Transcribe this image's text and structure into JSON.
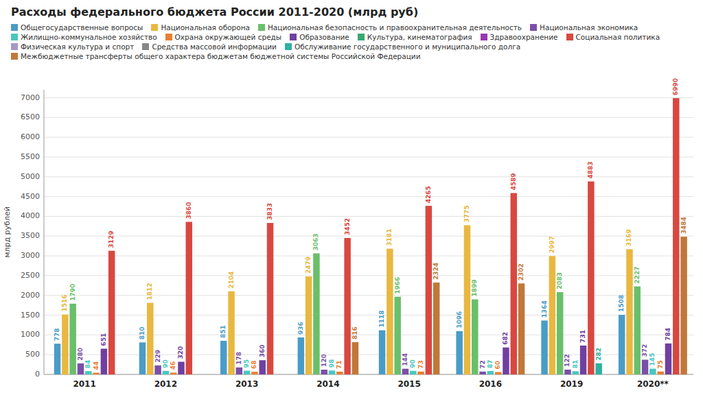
{
  "chart_data": {
    "type": "bar",
    "title": "Расходы федерального бюджета России 2011-2020 (млрд руб)",
    "ylabel": "млрд рублей",
    "categories": [
      "2011",
      "2012",
      "2013",
      "2014",
      "2015",
      "2016",
      "2019",
      "2020**"
    ],
    "series": [
      {
        "name": "Общегосударственные вопросы",
        "color": "#4A9CC8",
        "values": [
          778,
          810,
          851,
          936,
          1118,
          1096,
          1364,
          1508
        ]
      },
      {
        "name": "Национальная оборона",
        "color": "#E8B840",
        "values": [
          1516,
          1812,
          2104,
          2479,
          3181,
          3775,
          2997,
          3169
        ]
      },
      {
        "name": "Национальная безопасность и правоохранительная деятельность",
        "color": "#6ABF6A",
        "values": [
          1790,
          null,
          null,
          3063,
          1966,
          1899,
          2083,
          2227
        ]
      },
      {
        "name": "Национальная экономика",
        "color": "#7B4FA8",
        "values": [
          280,
          229,
          178,
          120,
          144,
          72,
          122,
          372
        ]
      },
      {
        "name": "Жилищно-коммунальное хозяйство",
        "color": "#48C8C0",
        "values": [
          84,
          90,
          95,
          98,
          90,
          87,
          81,
          145
        ]
      },
      {
        "name": "Охрана окружающей среды",
        "color": "#E88030",
        "values": [
          44,
          46,
          68,
          71,
          73,
          60,
          null,
          75
        ]
      },
      {
        "name": "Образование",
        "color": "#7040A0",
        "values": [
          651,
          320,
          360,
          null,
          null,
          682,
          731,
          784
        ]
      },
      {
        "name": "Культура, кинематография",
        "color": "#38A870",
        "values": [
          null,
          null,
          null,
          null,
          null,
          null,
          null,
          null
        ]
      },
      {
        "name": "Здравоохранение",
        "color": "#9838B0",
        "values": [
          null,
          null,
          null,
          null,
          null,
          null,
          null,
          null
        ]
      },
      {
        "name": "Социальная политика",
        "color": "#D84840",
        "values": [
          3129,
          3860,
          3833,
          3452,
          4265,
          4589,
          4883,
          6990
        ]
      },
      {
        "name": "Физическая культура и спорт",
        "color": "#A898C8",
        "values": [
          null,
          null,
          null,
          null,
          null,
          null,
          null,
          null
        ]
      },
      {
        "name": "Средства массовой информации",
        "color": "#888888",
        "values": [
          null,
          null,
          null,
          null,
          null,
          null,
          null,
          null
        ]
      },
      {
        "name": "Обслуживание государственного и муниципального долга",
        "color": "#30B0A0",
        "values": [
          null,
          null,
          null,
          null,
          null,
          null,
          282,
          null
        ]
      },
      {
        "name": "Межбюджетные трансферты общего характера бюджетам бюджетной системы Российской Федерации",
        "color": "#C07838",
        "values": [
          null,
          null,
          null,
          816,
          2324,
          2302,
          null,
          3484
        ]
      }
    ],
    "ylim": [
      0,
      7200
    ],
    "yticks": [
      0,
      500,
      1000,
      1500,
      2000,
      2500,
      3000,
      3500,
      4000,
      4500,
      5000,
      5500,
      6000,
      6500,
      7000
    ],
    "grid": true,
    "legend": "top",
    "data_labels": true
  }
}
